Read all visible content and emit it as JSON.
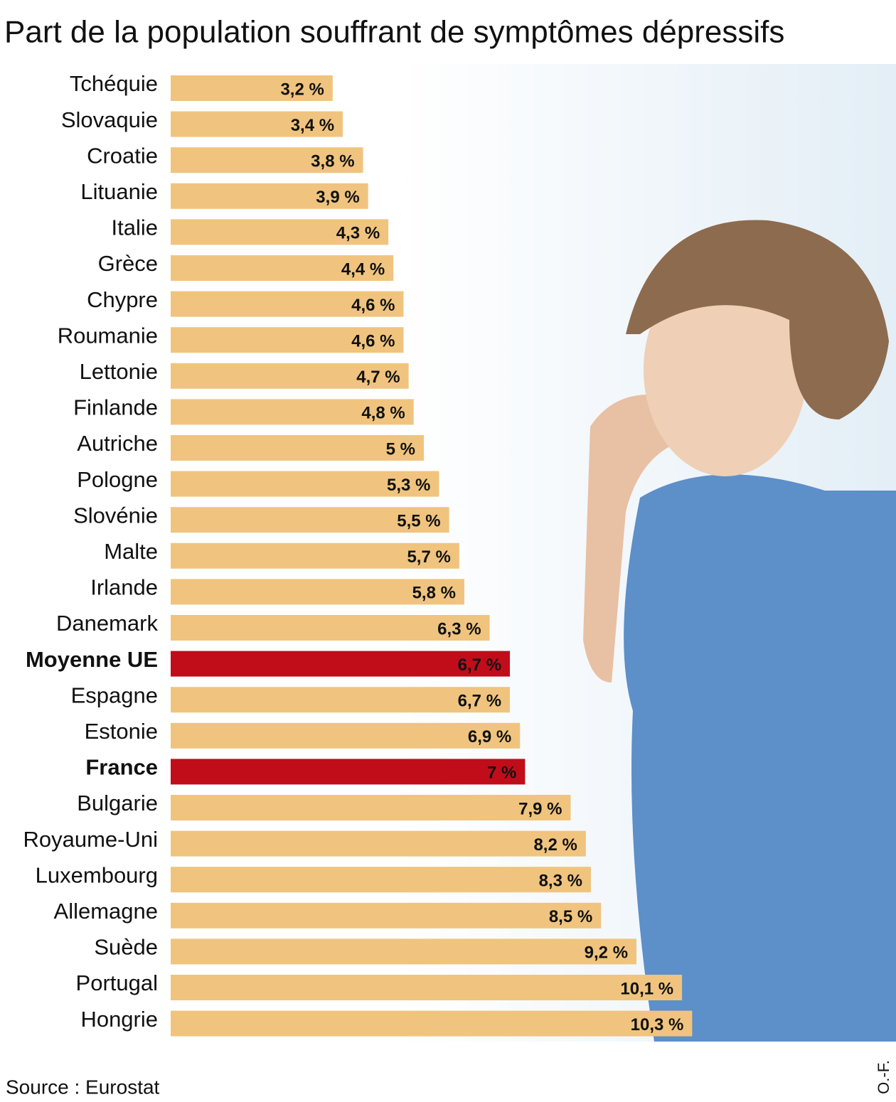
{
  "chart_data": {
    "type": "bar",
    "orientation": "horizontal",
    "title": "Part de la population souffrant de symptômes dépressifs",
    "categories": [
      "Tchéquie",
      "Slovaquie",
      "Croatie",
      "Lituanie",
      "Italie",
      "Grèce",
      "Chypre",
      "Roumanie",
      "Lettonie",
      "Finlande",
      "Autriche",
      "Pologne",
      "Slovénie",
      "Malte",
      "Irlande",
      "Danemark",
      "Moyenne UE",
      "Espagne",
      "Estonie",
      "France",
      "Bulgarie",
      "Royaume-Uni",
      "Luxembourg",
      "Allemagne",
      "Suède",
      "Portugal",
      "Hongrie"
    ],
    "values": [
      3.2,
      3.4,
      3.8,
      3.9,
      4.3,
      4.4,
      4.6,
      4.6,
      4.7,
      4.8,
      5,
      5.3,
      5.5,
      5.7,
      5.8,
      6.3,
      6.7,
      6.7,
      6.9,
      7,
      7.9,
      8.2,
      8.3,
      8.5,
      9.2,
      10.1,
      10.3
    ],
    "value_labels": [
      "3,2 %",
      "3,4 %",
      "3,8 %",
      "3,9 %",
      "4,3 %",
      "4,4 %",
      "4,6 %",
      "4,6 %",
      "4,7 %",
      "4,8 %",
      "5 %",
      "5,3 %",
      "5,5 %",
      "5,7 %",
      "5,8 %",
      "6,3 %",
      "6,7 %",
      "6,7 %",
      "6,9 %",
      "7 %",
      "7,9 %",
      "8,2 %",
      "8,3 %",
      "8,5 %",
      "9,2 %",
      "10,1 %",
      "10,3 %"
    ],
    "color": "#f0c47e",
    "colors": [
      "#f0c47e",
      "#f0c47e",
      "#f0c47e",
      "#f0c47e",
      "#f0c47e",
      "#f0c47e",
      "#f0c47e",
      "#f0c47e",
      "#f0c47e",
      "#f0c47e",
      "#f0c47e",
      "#f0c47e",
      "#f0c47e",
      "#f0c47e",
      "#f0c47e",
      "#f0c47e",
      "#c10d1a",
      "#f0c47e",
      "#f0c47e",
      "#c10d1a",
      "#f0c47e",
      "#f0c47e",
      "#f0c47e",
      "#f0c47e",
      "#f0c47e",
      "#f0c47e",
      "#f0c47e"
    ],
    "source": "Source : Eurostat",
    "credit": "O.-F."
  }
}
